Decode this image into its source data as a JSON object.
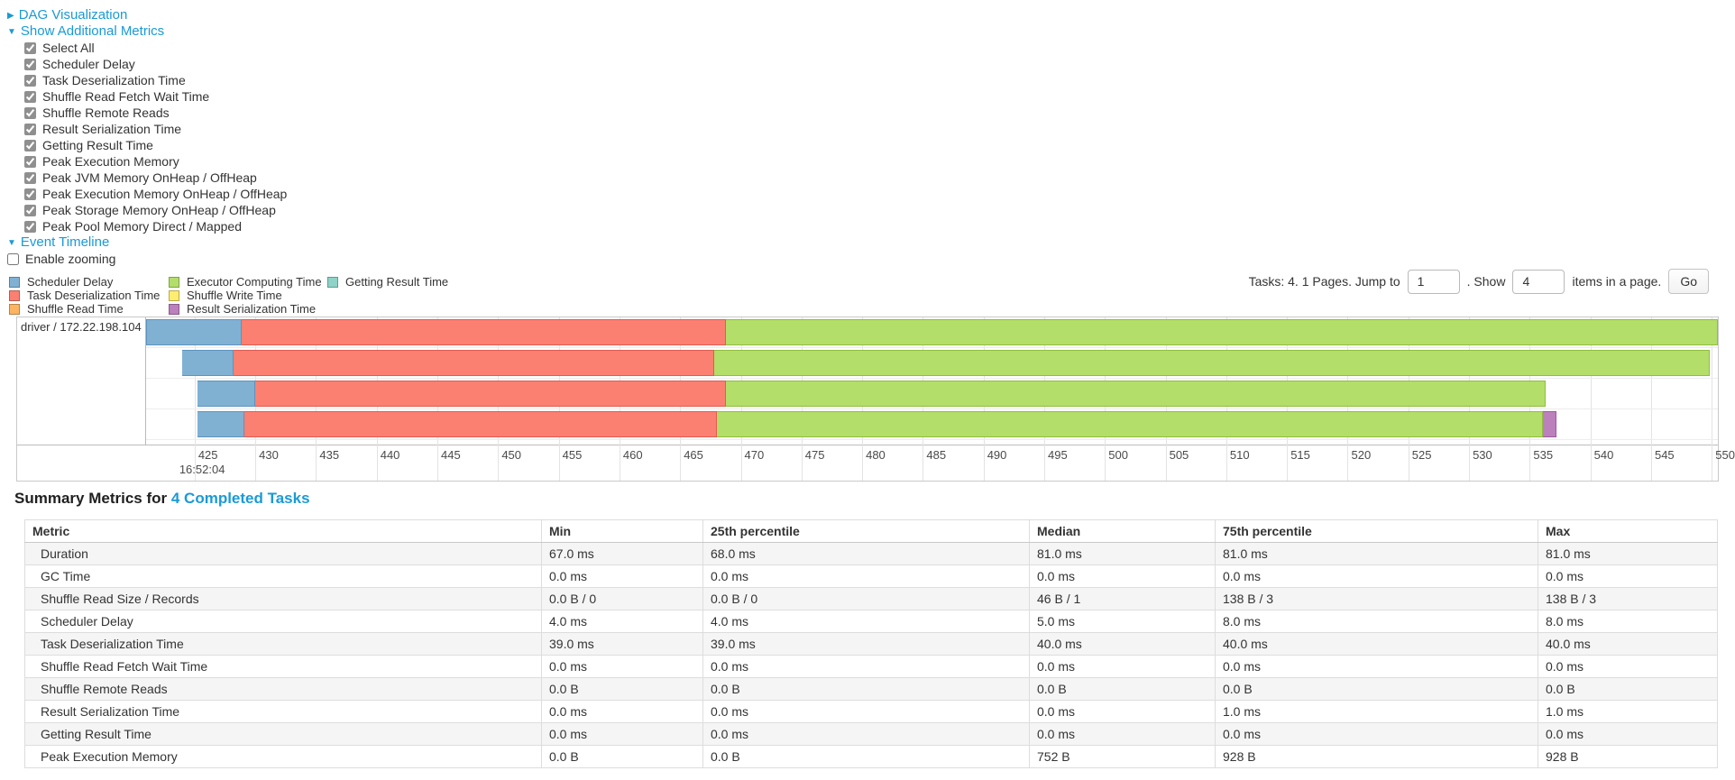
{
  "ui": {
    "arrow_collapsed": "▶",
    "arrow_expanded": "▼"
  },
  "colors": {
    "link": "#1a9ad6",
    "scheduler_delay": "#80B1D3",
    "task_deserialization": "#FB8072",
    "shuffle_read": "#FDB462",
    "executor_computing": "#B3DE69",
    "shuffle_write": "#FFED6F",
    "result_serialization": "#BC80BD",
    "getting_result": "#8DD3C7"
  },
  "segment_borders": {
    "scheduler_delay": "#5d94bf",
    "task_deserialization": "#e25b50",
    "executor_computing": "#8fbe3f",
    "result_serialization": "#9c5a9d"
  },
  "toggles": {
    "dag": "DAG Visualization",
    "show_metrics": "Show Additional Metrics",
    "event_timeline": "Event Timeline",
    "enable_zooming": "Enable zooming"
  },
  "metric_checkboxes": [
    {
      "label": "Select All",
      "checked": true
    },
    {
      "label": "Scheduler Delay",
      "checked": true
    },
    {
      "label": "Task Deserialization Time",
      "checked": true
    },
    {
      "label": "Shuffle Read Fetch Wait Time",
      "checked": true
    },
    {
      "label": "Shuffle Remote Reads",
      "checked": true
    },
    {
      "label": "Result Serialization Time",
      "checked": true
    },
    {
      "label": "Getting Result Time",
      "checked": true
    },
    {
      "label": "Peak Execution Memory",
      "checked": true
    },
    {
      "label": "Peak JVM Memory OnHeap / OffHeap",
      "checked": true
    },
    {
      "label": "Peak Execution Memory OnHeap / OffHeap",
      "checked": true
    },
    {
      "label": "Peak Storage Memory OnHeap / OffHeap",
      "checked": true
    },
    {
      "label": "Peak Pool Memory Direct / Mapped",
      "checked": true
    }
  ],
  "legend": {
    "items": [
      {
        "label": "Scheduler Delay",
        "metric": "scheduler_delay"
      },
      {
        "label": "Task Deserialization Time",
        "metric": "task_deserialization"
      },
      {
        "label": "Shuffle Read Time",
        "metric": "shuffle_read"
      },
      {
        "label": "Executor Computing Time",
        "metric": "executor_computing"
      },
      {
        "label": "Shuffle Write Time",
        "metric": "shuffle_write"
      },
      {
        "label": "Result Serialization Time",
        "metric": "result_serialization"
      },
      {
        "label": "Getting Result Time",
        "metric": "getting_result"
      }
    ]
  },
  "pagination": {
    "tasks_text": "Tasks: 4. 1 Pages. Jump to",
    "jump_value": "1",
    "show_text": ". Show",
    "show_value": "4",
    "items_text": "items in a page.",
    "go_label": "Go"
  },
  "chart_data": {
    "type": "timeline",
    "title": "Event Timeline",
    "row_label": "driver / 172.22.198.104",
    "x_axis": {
      "min": 421,
      "max": 550.5,
      "tick_step": 5,
      "ticks": [
        425,
        430,
        435,
        440,
        445,
        450,
        455,
        460,
        465,
        470,
        475,
        480,
        485,
        490,
        495,
        500,
        505,
        510,
        515,
        520,
        525,
        530,
        535,
        540,
        545,
        550
      ],
      "major_label": "16:52:04",
      "major_tick": 425,
      "unit": "ms within 16:52:04"
    },
    "tasks": [
      {
        "segments": [
          {
            "metric": "scheduler_delay",
            "start_ms": 421.0,
            "end_ms": 428.9
          },
          {
            "metric": "task_deserialization",
            "start_ms": 428.9,
            "end_ms": 468.8
          },
          {
            "metric": "executor_computing",
            "start_ms": 468.8,
            "end_ms": 550.5
          }
        ]
      },
      {
        "segments": [
          {
            "metric": "scheduler_delay",
            "start_ms": 424.0,
            "end_ms": 428.2
          },
          {
            "metric": "task_deserialization",
            "start_ms": 428.2,
            "end_ms": 467.8
          },
          {
            "metric": "executor_computing",
            "start_ms": 467.8,
            "end_ms": 549.8
          }
        ]
      },
      {
        "segments": [
          {
            "metric": "scheduler_delay",
            "start_ms": 425.2,
            "end_ms": 430.0
          },
          {
            "metric": "task_deserialization",
            "start_ms": 430.0,
            "end_ms": 468.8
          },
          {
            "metric": "executor_computing",
            "start_ms": 468.8,
            "end_ms": 536.3
          }
        ]
      },
      {
        "segments": [
          {
            "metric": "scheduler_delay",
            "start_ms": 425.2,
            "end_ms": 429.1
          },
          {
            "metric": "task_deserialization",
            "start_ms": 429.1,
            "end_ms": 468.0
          },
          {
            "metric": "executor_computing",
            "start_ms": 468.0,
            "end_ms": 536.1
          },
          {
            "metric": "result_serialization",
            "start_ms": 536.1,
            "end_ms": 537.2
          }
        ]
      }
    ]
  },
  "summary": {
    "title_prefix": "Summary Metrics for",
    "title_link": "4 Completed Tasks",
    "columns": [
      "Metric",
      "Min",
      "25th percentile",
      "Median",
      "75th percentile",
      "Max"
    ],
    "rows": [
      {
        "metric": "Duration",
        "values": [
          "67.0 ms",
          "68.0 ms",
          "81.0 ms",
          "81.0 ms",
          "81.0 ms"
        ]
      },
      {
        "metric": "GC Time",
        "values": [
          "0.0 ms",
          "0.0 ms",
          "0.0 ms",
          "0.0 ms",
          "0.0 ms"
        ]
      },
      {
        "metric": "Shuffle Read Size / Records",
        "values": [
          "0.0 B / 0",
          "0.0 B / 0",
          "46 B / 1",
          "138 B / 3",
          "138 B / 3"
        ]
      },
      {
        "metric": "Scheduler Delay",
        "values": [
          "4.0 ms",
          "4.0 ms",
          "5.0 ms",
          "8.0 ms",
          "8.0 ms"
        ]
      },
      {
        "metric": "Task Deserialization Time",
        "values": [
          "39.0 ms",
          "39.0 ms",
          "40.0 ms",
          "40.0 ms",
          "40.0 ms"
        ]
      },
      {
        "metric": "Shuffle Read Fetch Wait Time",
        "values": [
          "0.0 ms",
          "0.0 ms",
          "0.0 ms",
          "0.0 ms",
          "0.0 ms"
        ]
      },
      {
        "metric": "Shuffle Remote Reads",
        "values": [
          "0.0 B",
          "0.0 B",
          "0.0 B",
          "0.0 B",
          "0.0 B"
        ]
      },
      {
        "metric": "Result Serialization Time",
        "values": [
          "0.0 ms",
          "0.0 ms",
          "0.0 ms",
          "1.0 ms",
          "1.0 ms"
        ]
      },
      {
        "metric": "Getting Result Time",
        "values": [
          "0.0 ms",
          "0.0 ms",
          "0.0 ms",
          "0.0 ms",
          "0.0 ms"
        ]
      },
      {
        "metric": "Peak Execution Memory",
        "values": [
          "0.0 B",
          "0.0 B",
          "752 B",
          "928 B",
          "928 B"
        ]
      }
    ]
  }
}
